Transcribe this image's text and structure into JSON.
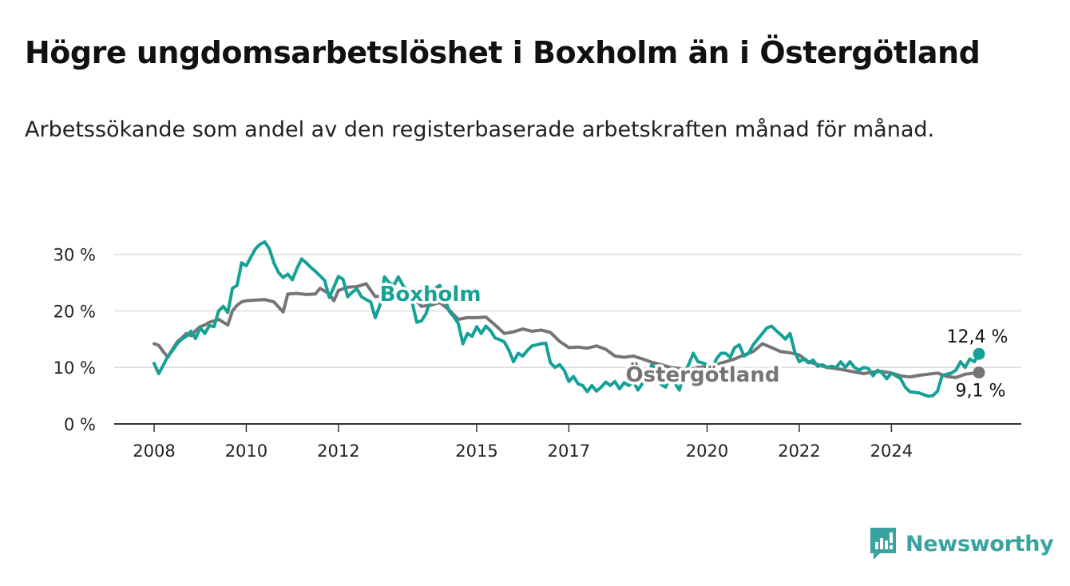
{
  "title": "Högre ungdomsarbetslöshet i Boxholm än i Östergötland",
  "subtitle": "Arbetssökande som andel av den registerbaserade arbetskraften månad för månad.",
  "brand": {
    "name": "Newsworthy",
    "icon": "newsworthy-logo-icon"
  },
  "colors": {
    "boxholm": "#15a196",
    "ostergotland": "#777377",
    "grid": "#dcdcdc",
    "axis": "#333333",
    "label_text": "#222222"
  },
  "chart_data": {
    "type": "line",
    "title": "Högre ungdomsarbetslöshet i Boxholm än i Östergötland",
    "subtitle": "Arbetssökande som andel av den registerbaserade arbetskraften månad för månad.",
    "xlabel": "",
    "ylabel": "",
    "xlim": [
      2008,
      2025
    ],
    "ylim": [
      0,
      33
    ],
    "x_ticks": [
      2008,
      2010,
      2012,
      2015,
      2017,
      2020,
      2022,
      2024
    ],
    "x_tick_labels": [
      "2008",
      "2010",
      "2012",
      "2015",
      "2017",
      "2020",
      "2022",
      "2024"
    ],
    "y_ticks": [
      0,
      10,
      20,
      30
    ],
    "y_tick_labels": [
      "0 %",
      "10 %",
      "20 %",
      "30 %"
    ],
    "grid": "horizontal",
    "legend": "inline labels",
    "series": [
      {
        "name": "Boxholm",
        "label": "Boxholm",
        "end_label": "12,4 %",
        "points": [
          [
            2008.0,
            10.7
          ],
          [
            2008.1,
            8.9
          ],
          [
            2008.2,
            10.4
          ],
          [
            2008.3,
            12.0
          ],
          [
            2008.4,
            13.0
          ],
          [
            2008.5,
            14.2
          ],
          [
            2008.6,
            15.0
          ],
          [
            2008.7,
            15.5
          ],
          [
            2008.8,
            16.4
          ],
          [
            2008.9,
            15.1
          ],
          [
            2009.0,
            17.0
          ],
          [
            2009.1,
            16.0
          ],
          [
            2009.2,
            17.4
          ],
          [
            2009.3,
            17.2
          ],
          [
            2009.4,
            20.0
          ],
          [
            2009.5,
            20.8
          ],
          [
            2009.6,
            19.7
          ],
          [
            2009.7,
            24.0
          ],
          [
            2009.8,
            24.5
          ],
          [
            2009.9,
            28.5
          ],
          [
            2010.0,
            28.0
          ],
          [
            2010.1,
            29.5
          ],
          [
            2010.2,
            31.0
          ],
          [
            2010.3,
            31.8
          ],
          [
            2010.4,
            32.2
          ],
          [
            2010.5,
            31.0
          ],
          [
            2010.6,
            28.5
          ],
          [
            2010.7,
            26.8
          ],
          [
            2010.8,
            25.9
          ],
          [
            2010.9,
            26.5
          ],
          [
            2011.0,
            25.5
          ],
          [
            2011.1,
            27.5
          ],
          [
            2011.2,
            29.2
          ],
          [
            2011.3,
            28.5
          ],
          [
            2011.4,
            27.7
          ],
          [
            2011.5,
            27.0
          ],
          [
            2011.6,
            26.2
          ],
          [
            2011.7,
            25.4
          ],
          [
            2011.8,
            22.4
          ],
          [
            2011.9,
            24.2
          ],
          [
            2012.0,
            26.1
          ],
          [
            2012.1,
            25.6
          ],
          [
            2012.2,
            22.5
          ],
          [
            2012.3,
            23.3
          ],
          [
            2012.4,
            23.9
          ],
          [
            2012.5,
            22.5
          ],
          [
            2012.6,
            22.0
          ],
          [
            2012.7,
            21.6
          ],
          [
            2012.8,
            18.8
          ],
          [
            2012.9,
            21.0
          ],
          [
            2013.0,
            26.0
          ],
          [
            2013.1,
            25.0
          ],
          [
            2013.2,
            24.5
          ],
          [
            2013.3,
            26.0
          ],
          [
            2013.4,
            24.5
          ],
          [
            2013.5,
            23.5
          ],
          [
            2013.6,
            21.5
          ],
          [
            2013.7,
            18.0
          ],
          [
            2013.8,
            18.2
          ],
          [
            2013.9,
            19.5
          ],
          [
            2014.0,
            22.0
          ],
          [
            2014.1,
            24.0
          ],
          [
            2014.2,
            24.5
          ],
          [
            2014.3,
            22.5
          ],
          [
            2014.4,
            20.0
          ],
          [
            2014.5,
            19.0
          ],
          [
            2014.6,
            17.8
          ],
          [
            2014.7,
            14.2
          ],
          [
            2014.8,
            16.0
          ],
          [
            2014.9,
            15.5
          ],
          [
            2015.0,
            17.2
          ],
          [
            2015.1,
            16.0
          ],
          [
            2015.2,
            17.3
          ],
          [
            2015.3,
            16.5
          ],
          [
            2015.4,
            15.2
          ],
          [
            2015.5,
            14.9
          ],
          [
            2015.6,
            14.5
          ],
          [
            2015.7,
            13.0
          ],
          [
            2015.8,
            11.0
          ],
          [
            2015.9,
            12.5
          ],
          [
            2016.0,
            12.0
          ],
          [
            2016.1,
            13.0
          ],
          [
            2016.2,
            13.8
          ],
          [
            2016.3,
            14.0
          ],
          [
            2016.4,
            14.2
          ],
          [
            2016.5,
            14.3
          ],
          [
            2016.6,
            10.8
          ],
          [
            2016.7,
            10.0
          ],
          [
            2016.8,
            10.5
          ],
          [
            2016.9,
            9.5
          ],
          [
            2017.0,
            7.5
          ],
          [
            2017.1,
            8.4
          ],
          [
            2017.2,
            7.1
          ],
          [
            2017.3,
            6.8
          ],
          [
            2017.4,
            5.7
          ],
          [
            2017.5,
            6.8
          ],
          [
            2017.6,
            5.8
          ],
          [
            2017.7,
            6.5
          ],
          [
            2017.8,
            7.4
          ],
          [
            2017.9,
            6.8
          ],
          [
            2018.0,
            7.5
          ],
          [
            2018.1,
            6.2
          ],
          [
            2018.2,
            7.3
          ],
          [
            2018.3,
            6.8
          ],
          [
            2018.4,
            7.5
          ],
          [
            2018.5,
            6.0
          ],
          [
            2018.6,
            7.2
          ],
          [
            2018.7,
            8.0
          ],
          [
            2018.8,
            10.5
          ],
          [
            2018.9,
            9.5
          ],
          [
            2019.0,
            7.0
          ],
          [
            2019.1,
            6.5
          ],
          [
            2019.2,
            8.5
          ],
          [
            2019.3,
            7.2
          ],
          [
            2019.4,
            6.0
          ],
          [
            2019.5,
            9.0
          ],
          [
            2019.6,
            10.5
          ],
          [
            2019.7,
            12.5
          ],
          [
            2019.8,
            11.0
          ],
          [
            2019.9,
            10.8
          ],
          [
            2020.0,
            10.5
          ],
          [
            2020.1,
            9.5
          ],
          [
            2020.2,
            11.5
          ],
          [
            2020.3,
            12.5
          ],
          [
            2020.4,
            12.5
          ],
          [
            2020.5,
            11.8
          ],
          [
            2020.6,
            13.5
          ],
          [
            2020.7,
            14.0
          ],
          [
            2020.8,
            12.0
          ],
          [
            2020.9,
            12.5
          ],
          [
            2021.0,
            14.0
          ],
          [
            2021.1,
            15.0
          ],
          [
            2021.2,
            16.0
          ],
          [
            2021.3,
            17.0
          ],
          [
            2021.4,
            17.3
          ],
          [
            2021.5,
            16.5
          ],
          [
            2021.6,
            15.8
          ],
          [
            2021.7,
            15.0
          ],
          [
            2021.8,
            16.0
          ],
          [
            2021.9,
            12.8
          ],
          [
            2022.0,
            11.0
          ],
          [
            2022.1,
            11.5
          ],
          [
            2022.2,
            10.8
          ],
          [
            2022.3,
            11.3
          ],
          [
            2022.4,
            10.2
          ],
          [
            2022.5,
            10.5
          ],
          [
            2022.6,
            10.0
          ],
          [
            2022.7,
            10.2
          ],
          [
            2022.8,
            10.0
          ],
          [
            2022.9,
            11.0
          ],
          [
            2023.0,
            10.0
          ],
          [
            2023.1,
            11.0
          ],
          [
            2023.2,
            10.0
          ],
          [
            2023.3,
            9.5
          ],
          [
            2023.4,
            10.0
          ],
          [
            2023.5,
            9.8
          ],
          [
            2023.6,
            8.5
          ],
          [
            2023.7,
            9.5
          ],
          [
            2023.8,
            9.0
          ],
          [
            2023.9,
            8.0
          ],
          [
            2024.0,
            9.0
          ],
          [
            2024.1,
            8.5
          ],
          [
            2024.2,
            8.0
          ],
          [
            2024.3,
            6.5
          ],
          [
            2024.4,
            5.7
          ],
          [
            2024.5,
            5.6
          ],
          [
            2024.6,
            5.5
          ],
          [
            2024.7,
            5.2
          ],
          [
            2024.8,
            4.9
          ],
          [
            2024.9,
            5.0
          ],
          [
            2025.0,
            5.8
          ],
          [
            2025.1,
            8.5
          ],
          [
            2025.2,
            8.8
          ],
          [
            2025.3,
            9.0
          ],
          [
            2025.4,
            9.5
          ],
          [
            2025.5,
            11.0
          ],
          [
            2025.6,
            10.0
          ],
          [
            2025.7,
            11.5
          ],
          [
            2025.8,
            11.0
          ],
          [
            2025.9,
            12.4
          ]
        ]
      },
      {
        "name": "Östergötland",
        "label": "Östergötland",
        "end_label": "9,1 %",
        "points": [
          [
            2008.0,
            14.2
          ],
          [
            2008.1,
            13.9
          ],
          [
            2008.2,
            12.8
          ],
          [
            2008.3,
            11.8
          ],
          [
            2008.4,
            13.2
          ],
          [
            2008.5,
            14.5
          ],
          [
            2008.6,
            15.2
          ],
          [
            2008.7,
            16.0
          ],
          [
            2008.8,
            15.6
          ],
          [
            2008.9,
            16.5
          ],
          [
            2009.0,
            17.2
          ],
          [
            2009.1,
            17.5
          ],
          [
            2009.2,
            18.0
          ],
          [
            2009.3,
            18.2
          ],
          [
            2009.4,
            18.5
          ],
          [
            2009.5,
            18.0
          ],
          [
            2009.6,
            17.5
          ],
          [
            2009.7,
            20.0
          ],
          [
            2009.8,
            21.0
          ],
          [
            2009.9,
            21.6
          ],
          [
            2010.0,
            21.8
          ],
          [
            2010.2,
            21.9
          ],
          [
            2010.4,
            22.0
          ],
          [
            2010.6,
            21.6
          ],
          [
            2010.8,
            19.8
          ],
          [
            2010.9,
            23.0
          ],
          [
            2011.1,
            23.1
          ],
          [
            2011.3,
            22.9
          ],
          [
            2011.5,
            23.0
          ],
          [
            2011.6,
            24.0
          ],
          [
            2011.8,
            23.0
          ],
          [
            2011.9,
            21.8
          ],
          [
            2012.0,
            23.6
          ],
          [
            2012.2,
            24.2
          ],
          [
            2012.4,
            24.3
          ],
          [
            2012.6,
            24.8
          ],
          [
            2012.8,
            22.5
          ],
          [
            2013.0,
            22.8
          ],
          [
            2013.2,
            23.8
          ],
          [
            2013.4,
            23.3
          ],
          [
            2013.6,
            22.6
          ],
          [
            2013.8,
            20.8
          ],
          [
            2014.0,
            21.0
          ],
          [
            2014.2,
            21.5
          ],
          [
            2014.4,
            20.2
          ],
          [
            2014.6,
            18.5
          ],
          [
            2014.8,
            18.8
          ],
          [
            2015.0,
            18.8
          ],
          [
            2015.2,
            18.9
          ],
          [
            2015.4,
            17.5
          ],
          [
            2015.6,
            16.0
          ],
          [
            2015.8,
            16.3
          ],
          [
            2016.0,
            16.8
          ],
          [
            2016.2,
            16.4
          ],
          [
            2016.4,
            16.6
          ],
          [
            2016.6,
            16.2
          ],
          [
            2016.8,
            14.6
          ],
          [
            2017.0,
            13.5
          ],
          [
            2017.2,
            13.6
          ],
          [
            2017.4,
            13.4
          ],
          [
            2017.6,
            13.8
          ],
          [
            2017.8,
            13.2
          ],
          [
            2018.0,
            12.0
          ],
          [
            2018.2,
            11.8
          ],
          [
            2018.4,
            12.0
          ],
          [
            2018.6,
            11.5
          ],
          [
            2018.8,
            10.9
          ],
          [
            2019.0,
            10.5
          ],
          [
            2019.2,
            10.0
          ],
          [
            2019.4,
            9.8
          ],
          [
            2019.6,
            9.5
          ],
          [
            2019.8,
            10.0
          ],
          [
            2020.0,
            10.2
          ],
          [
            2020.2,
            10.5
          ],
          [
            2020.4,
            11.0
          ],
          [
            2020.6,
            11.5
          ],
          [
            2020.8,
            12.2
          ],
          [
            2021.0,
            12.8
          ],
          [
            2021.2,
            14.2
          ],
          [
            2021.4,
            13.5
          ],
          [
            2021.6,
            12.8
          ],
          [
            2021.8,
            12.6
          ],
          [
            2022.0,
            12.2
          ],
          [
            2022.2,
            11.0
          ],
          [
            2022.4,
            10.5
          ],
          [
            2022.6,
            10.0
          ],
          [
            2022.8,
            9.8
          ],
          [
            2023.0,
            9.5
          ],
          [
            2023.2,
            9.2
          ],
          [
            2023.4,
            8.9
          ],
          [
            2023.6,
            9.2
          ],
          [
            2023.8,
            9.3
          ],
          [
            2024.0,
            9.0
          ],
          [
            2024.2,
            8.5
          ],
          [
            2024.4,
            8.3
          ],
          [
            2024.6,
            8.6
          ],
          [
            2024.8,
            8.8
          ],
          [
            2025.0,
            9.0
          ],
          [
            2025.2,
            8.4
          ],
          [
            2025.4,
            8.2
          ],
          [
            2025.6,
            8.8
          ],
          [
            2025.8,
            9.0
          ],
          [
            2025.9,
            9.1
          ]
        ]
      }
    ]
  }
}
